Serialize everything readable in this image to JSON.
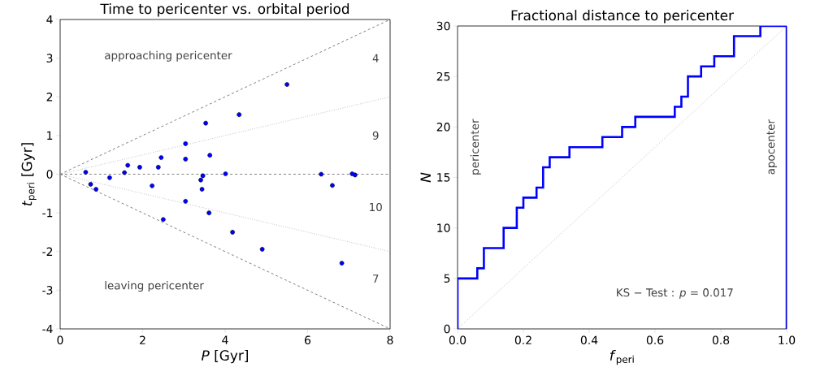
{
  "chart_data": [
    {
      "type": "scatter",
      "title": "Time to pericenter vs. orbital period",
      "xlabel": "*P* [Gyr]",
      "ylabel": "*t*$_{peri}$ [Gyr]",
      "xlim": [
        0,
        8
      ],
      "ylim": [
        -4,
        4
      ],
      "xticks": [
        0,
        2,
        4,
        6,
        8
      ],
      "yticks": [
        -4,
        -3,
        -2,
        -1,
        0,
        1,
        2,
        3,
        4
      ],
      "series": [
        {
          "type": "line",
          "color": "#808080",
          "line_style": "dashed",
          "x": [
            0,
            8
          ],
          "values": [
            0,
            4
          ]
        },
        {
          "type": "line",
          "color": "#808080",
          "line_style": "dashed",
          "x": [
            0,
            8
          ],
          "values": [
            0,
            -4
          ]
        },
        {
          "type": "line",
          "color": "#a0a0a0",
          "line_style": "dotted",
          "x": [
            0,
            8
          ],
          "values": [
            0,
            2
          ]
        },
        {
          "type": "line",
          "color": "#a0a0a0",
          "line_style": "dotted",
          "x": [
            0,
            8
          ],
          "values": [
            0,
            -2
          ]
        },
        {
          "type": "line",
          "color": "#808080",
          "line_style": "dashed",
          "x": [
            0,
            8
          ],
          "values": [
            0,
            0
          ]
        },
        {
          "color": "#0000ff",
          "marker": "circle",
          "x": [
            0.62,
            1.2,
            1.56,
            1.64,
            1.93,
            2.38,
            2.45,
            3.04,
            3.04,
            3.53,
            3.63,
            4.34,
            5.5,
            3.46,
            4.01,
            6.33,
            7.08,
            7.15,
            0.74,
            0.87,
            2.23,
            3.41,
            3.44,
            3.04,
            3.61,
            2.5,
            4.18,
            4.9,
            6.6,
            6.83
          ],
          "values": [
            0.05,
            -0.09,
            0.04,
            0.23,
            0.18,
            0.18,
            0.43,
            0.39,
            0.79,
            1.32,
            0.49,
            1.54,
            2.32,
            -0.04,
            0.01,
            0.0,
            0.01,
            -0.02,
            -0.26,
            -0.39,
            -0.3,
            -0.15,
            -0.39,
            -0.7,
            -1.0,
            -1.17,
            -1.5,
            -1.94,
            -0.29,
            -2.3
          ]
        }
      ],
      "annotations": [
        "approaching pericenter",
        "leaving pericenter",
        "4",
        "9",
        "10",
        "7"
      ]
    },
    {
      "type": "step",
      "title": "Fractional distance to pericenter",
      "xlabel": "*f*$_{peri}$",
      "ylabel": "*N*",
      "xlim": [
        0,
        1
      ],
      "ylim": [
        0,
        30
      ],
      "xticks": [
        {
          "value": 0,
          "label": "0.0"
        },
        {
          "value": 0.2,
          "label": "0.2"
        },
        {
          "value": 0.4,
          "label": "0.4"
        },
        {
          "value": 0.6,
          "label": "0.6"
        },
        {
          "value": 0.8,
          "label": "0.8"
        },
        {
          "value": 1,
          "label": "1.0"
        }
      ],
      "yticks": [
        0,
        5,
        10,
        15,
        20,
        25,
        30
      ],
      "series": [
        {
          "type": "line",
          "color": "#a0a0a0",
          "line_style": "dotted",
          "x": [
            0,
            1
          ],
          "values": [
            0,
            30
          ]
        },
        {
          "color": "#0000ff",
          "line_style": "solid",
          "x": [
            0,
            0,
            0.06,
            0.08,
            0.14,
            0.18,
            0.2,
            0.24,
            0.26,
            0.28,
            0.34,
            0.44,
            0.5,
            0.54,
            0.66,
            0.68,
            0.7,
            0.74,
            0.78,
            0.84,
            0.92,
            1,
            1
          ],
          "values": [
            0,
            5,
            6,
            8,
            10,
            12,
            13,
            14,
            16,
            17,
            18,
            19,
            20,
            21,
            22,
            23,
            25,
            26,
            27,
            29,
            30,
            30,
            0
          ]
        }
      ],
      "annotations": [
        "pericenter",
        "apocenter",
        "KS − Test : *p* = 0.017"
      ]
    }
  ]
}
